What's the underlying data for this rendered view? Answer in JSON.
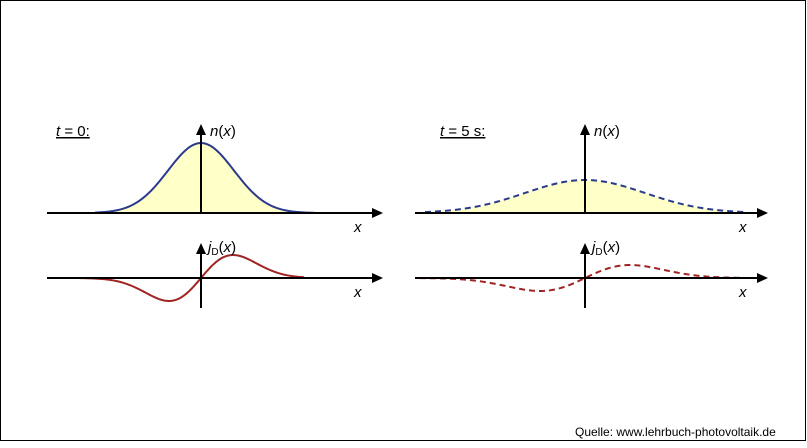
{
  "panels": [
    {
      "label": {
        "symbol": "t",
        "rest": " = 0:"
      },
      "density_axis": {
        "symbol": "n",
        "open": "(",
        "argument": "x",
        "close": ")"
      },
      "current_axis": {
        "symbol": "j",
        "subscript": "D",
        "open": "(",
        "argument": "x",
        "close": ")"
      },
      "x_axis": "x"
    },
    {
      "label": {
        "symbol": "t",
        "rest": " = 5 s:"
      },
      "density_axis": {
        "symbol": "n",
        "open": "(",
        "argument": "x",
        "close": ")"
      },
      "current_axis": {
        "symbol": "j",
        "subscript": "D",
        "open": "(",
        "argument": "x",
        "close": ")"
      },
      "x_axis": "x"
    }
  ],
  "source": "Quelle: www.lehrbuch-photovoltaik.de"
}
